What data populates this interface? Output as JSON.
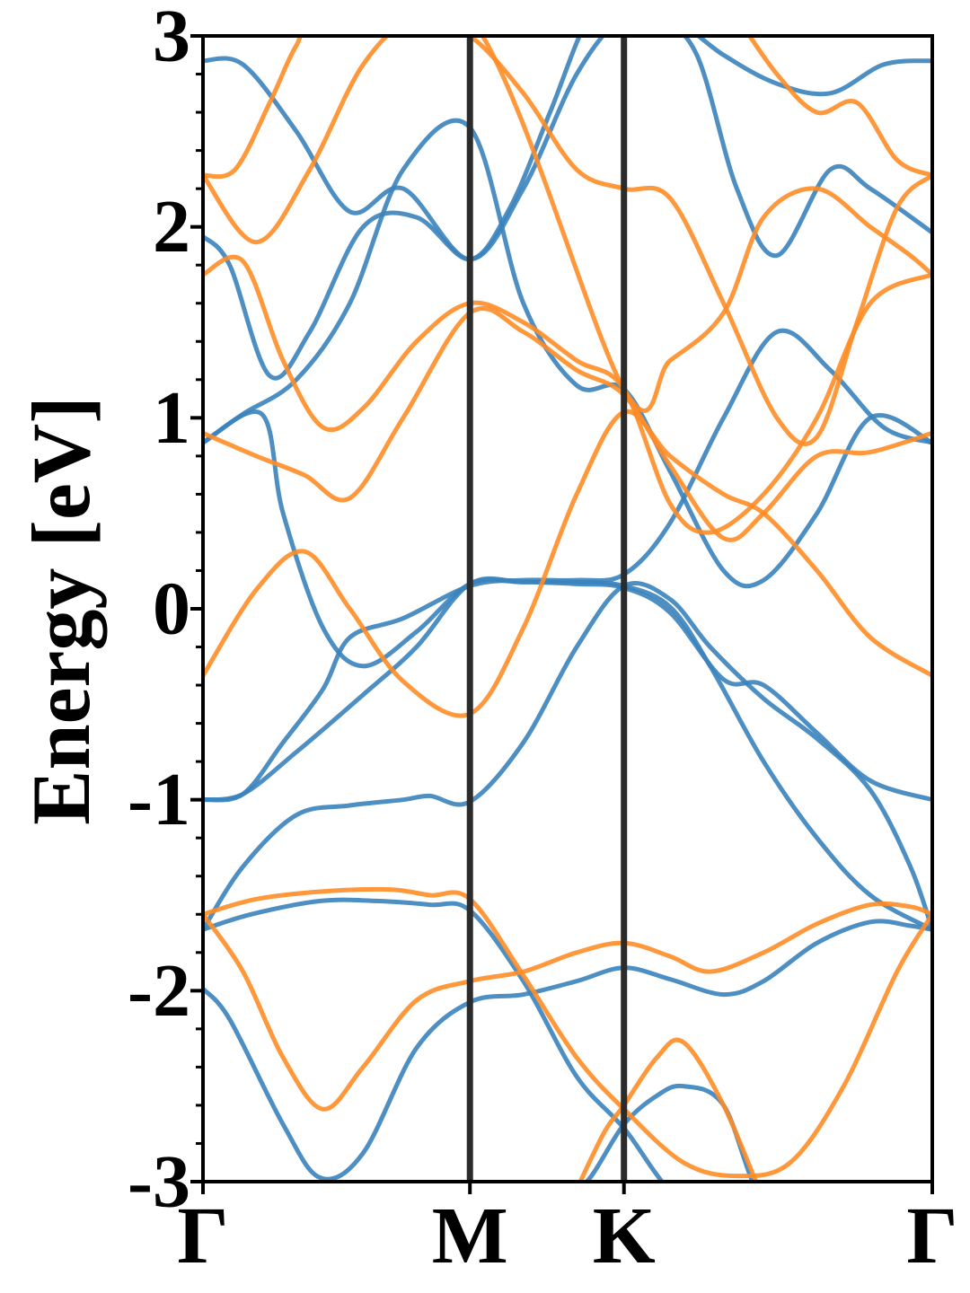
{
  "chart_data": {
    "type": "line",
    "title": "",
    "xlabel": "",
    "ylabel": "Energy [eV]",
    "ylim": [
      -3,
      3
    ],
    "yticks": [
      -3,
      -2,
      -1,
      0,
      1,
      2,
      3
    ],
    "ytick_labels": [
      "-3",
      "-2",
      "-1",
      "0",
      "1",
      "2",
      "3"
    ],
    "kpath": {
      "labels": [
        "Γ",
        "M",
        "K",
        "Γ"
      ],
      "positions": [
        0,
        1,
        1.577,
        2.732
      ]
    },
    "grid": false,
    "legend": "none",
    "colors": {
      "spin_up": "#3a83bd",
      "spin_down": "#ff8c26",
      "kpoint_line": "#2b2b2b"
    },
    "series": [
      {
        "color": "spin_up",
        "x": [
          0,
          0.18,
          0.44,
          0.65,
          0.85,
          1.0,
          1.2,
          1.4,
          1.577,
          1.8,
          2.1,
          2.4,
          2.6,
          2.732
        ],
        "y": [
          -1.68,
          -1.6,
          -1.53,
          -1.53,
          -1.55,
          -1.58,
          -1.95,
          -2.45,
          -2.72,
          -3.1,
          -3.1,
          -3.1,
          -3.1,
          -3.1
        ]
      },
      {
        "color": "spin_up",
        "x": [
          0,
          0.1,
          0.3,
          0.44,
          0.6,
          0.8,
          1.0,
          1.2,
          1.4,
          1.577,
          1.75,
          1.95,
          2.1,
          2.3,
          2.5,
          2.65,
          2.732
        ],
        "y": [
          -1.99,
          -2.15,
          -2.7,
          -2.98,
          -2.85,
          -2.3,
          -2.06,
          -2.02,
          -1.95,
          -1.88,
          -1.94,
          -2.02,
          -1.95,
          -1.75,
          -1.64,
          -1.66,
          -1.68
        ]
      },
      {
        "color": "spin_up",
        "x": [
          0,
          0.15,
          0.35,
          0.55,
          0.75,
          0.85,
          1.0,
          1.2,
          1.4,
          1.577,
          1.75,
          1.9,
          2.1,
          2.3,
          2.5,
          2.65,
          2.732
        ],
        "y": [
          -1.68,
          -1.35,
          -1.08,
          -1.03,
          -1.0,
          -0.98,
          -1.01,
          -0.7,
          -0.2,
          0.12,
          0.05,
          -0.2,
          -0.47,
          -0.68,
          -0.95,
          -1.35,
          -1.68
        ]
      },
      {
        "color": "spin_up",
        "x": [
          0,
          0.15,
          0.35,
          0.6,
          0.8,
          1.0,
          1.2,
          1.4,
          1.577,
          1.75,
          1.95,
          2.1,
          2.3,
          2.5,
          2.732
        ],
        "y": [
          -1.0,
          -0.97,
          -0.75,
          -0.45,
          -0.2,
          0.13,
          0.14,
          0.13,
          0.11,
          -0.02,
          -0.37,
          -0.4,
          -0.65,
          -0.9,
          -1.0
        ]
      },
      {
        "color": "spin_up",
        "x": [
          0,
          0.15,
          0.3,
          0.45,
          0.55,
          0.75,
          1.0,
          1.2,
          1.4,
          1.577,
          1.75,
          1.95,
          2.15,
          2.35,
          2.55,
          2.732
        ],
        "y": [
          -1.0,
          -0.97,
          -0.7,
          -0.42,
          -0.15,
          -0.05,
          0.12,
          0.15,
          0.15,
          0.18,
          0.45,
          1.0,
          1.45,
          1.25,
          0.95,
          0.87
        ]
      },
      {
        "color": "spin_up",
        "x": [
          0,
          0.22,
          0.3,
          0.45,
          0.6,
          0.8,
          1.0,
          1.2,
          1.4,
          1.577,
          1.75,
          1.9,
          2.1,
          2.3,
          2.5,
          2.732
        ],
        "y": [
          0.87,
          1.02,
          0.5,
          -0.1,
          -0.3,
          -0.12,
          0.13,
          0.14,
          0.14,
          0.12,
          0.01,
          -0.3,
          -0.8,
          -1.2,
          -1.5,
          -1.68
        ]
      },
      {
        "color": "spin_up",
        "x": [
          0,
          0.1,
          0.25,
          0.4,
          0.6,
          0.8,
          1.0,
          1.15,
          1.3,
          1.45,
          1.577,
          1.7,
          1.85,
          2.0,
          2.15,
          2.35,
          2.5,
          2.732
        ],
        "y": [
          1.95,
          1.8,
          1.22,
          1.45,
          2.0,
          2.05,
          1.83,
          2.1,
          2.6,
          3.1,
          3.1,
          3.1,
          2.9,
          2.2,
          1.85,
          2.3,
          2.2,
          1.97
        ]
      },
      {
        "color": "spin_up",
        "x": [
          0,
          0.15,
          0.35,
          0.55,
          0.75,
          1.0,
          1.2,
          1.4,
          1.577,
          1.75,
          1.95,
          2.1,
          2.3,
          2.5,
          2.732
        ],
        "y": [
          0.87,
          1.02,
          1.2,
          1.6,
          2.3,
          2.52,
          1.6,
          1.17,
          1.15,
          0.72,
          0.2,
          0.15,
          0.5,
          1.0,
          0.87
        ]
      },
      {
        "color": "spin_up",
        "x": [
          0,
          0.15,
          0.35,
          0.55,
          0.75,
          1.0,
          1.2,
          1.4,
          1.577,
          1.75,
          1.95,
          2.15,
          2.35,
          2.55,
          2.732
        ],
        "y": [
          2.87,
          2.85,
          2.5,
          2.08,
          2.2,
          1.83,
          2.2,
          2.8,
          3.1,
          3.1,
          2.9,
          2.75,
          2.7,
          2.85,
          2.87
        ]
      },
      {
        "color": "spin_up",
        "x": [
          1.35,
          1.45,
          1.577,
          1.7,
          1.8,
          1.95,
          2.1,
          2.3,
          2.5,
          2.732
        ],
        "y": [
          -3.1,
          -2.98,
          -2.7,
          -2.55,
          -2.5,
          -2.6,
          -3.1,
          -3.1,
          -3.1,
          -3.1
        ]
      },
      {
        "color": "spin_down",
        "x": [
          0,
          0.2,
          0.45,
          0.7,
          0.85,
          1.0,
          1.2,
          1.4,
          1.577,
          1.8,
          2.0,
          2.2,
          2.4,
          2.6,
          2.732
        ],
        "y": [
          -1.6,
          -1.52,
          -1.48,
          -1.47,
          -1.5,
          -1.52,
          -1.92,
          -2.35,
          -2.62,
          -2.9,
          -2.97,
          -2.9,
          -2.5,
          -1.9,
          -1.6
        ]
      },
      {
        "color": "spin_down",
        "x": [
          0,
          0.15,
          0.3,
          0.45,
          0.6,
          0.8,
          1.0,
          1.2,
          1.4,
          1.577,
          1.75,
          1.9,
          2.1,
          2.3,
          2.5,
          2.65,
          2.732
        ],
        "y": [
          -1.6,
          -1.9,
          -2.35,
          -2.62,
          -2.4,
          -2.05,
          -1.95,
          -1.9,
          -1.8,
          -1.75,
          -1.82,
          -1.9,
          -1.8,
          -1.65,
          -1.55,
          -1.56,
          -1.6
        ]
      },
      {
        "color": "spin_down",
        "x": [
          0,
          0.2,
          0.38,
          0.55,
          0.75,
          1.0,
          1.2,
          1.4,
          1.577,
          1.75,
          1.95,
          2.1,
          2.3,
          2.5,
          2.732
        ],
        "y": [
          -0.35,
          0.1,
          0.3,
          0.0,
          -0.38,
          -0.55,
          -0.1,
          0.6,
          1.03,
          0.8,
          0.6,
          0.5,
          0.2,
          -0.15,
          -0.35
        ]
      },
      {
        "color": "spin_down",
        "x": [
          0,
          0.2,
          0.38,
          0.55,
          0.75,
          1.0,
          1.2,
          1.4,
          1.577,
          1.75,
          1.95,
          2.1,
          2.3,
          2.5,
          2.732
        ],
        "y": [
          0.92,
          0.8,
          0.7,
          0.58,
          1.0,
          1.55,
          1.45,
          1.25,
          1.12,
          0.75,
          0.37,
          0.5,
          0.8,
          0.82,
          0.92
        ]
      },
      {
        "color": "spin_down",
        "x": [
          0,
          0.15,
          0.3,
          0.45,
          0.6,
          0.8,
          1.0,
          1.2,
          1.4,
          1.577,
          1.75,
          1.9,
          2.1,
          2.3,
          2.5,
          2.732
        ],
        "y": [
          1.75,
          1.82,
          1.3,
          0.95,
          1.05,
          1.4,
          1.6,
          1.5,
          1.3,
          1.15,
          0.55,
          0.4,
          0.6,
          1.0,
          1.6,
          1.75
        ]
      },
      {
        "color": "spin_down",
        "x": [
          0,
          0.2,
          0.4,
          0.6,
          0.8,
          1.0,
          1.2,
          1.4,
          1.577,
          1.75,
          1.95,
          2.15,
          2.3,
          2.45,
          2.6,
          2.732
        ],
        "y": [
          2.27,
          1.92,
          2.3,
          2.85,
          3.1,
          3.0,
          2.7,
          2.3,
          2.2,
          2.15,
          1.6,
          1.0,
          0.9,
          1.5,
          2.1,
          2.27
        ]
      },
      {
        "color": "spin_down",
        "x": [
          0,
          0.12,
          0.25,
          0.35,
          0.45,
          1.0,
          1.577,
          1.75,
          1.95,
          2.1,
          2.3,
          2.5,
          2.65,
          2.732
        ],
        "y": [
          2.27,
          2.3,
          2.65,
          2.95,
          3.1,
          3.1,
          1.15,
          1.3,
          1.55,
          2.05,
          2.2,
          2.0,
          1.85,
          1.75
        ]
      },
      {
        "color": "spin_down",
        "x": [
          2.0,
          2.15,
          2.3,
          2.45,
          2.6,
          2.732
        ],
        "y": [
          3.1,
          2.8,
          2.6,
          2.65,
          2.35,
          2.27
        ]
      },
      {
        "color": "spin_down",
        "x": [
          1.38,
          1.5,
          1.577,
          1.7,
          1.8,
          1.95,
          2.1
        ],
        "y": [
          -3.1,
          -2.75,
          -2.6,
          -2.35,
          -2.27,
          -2.6,
          -3.1
        ]
      }
    ]
  }
}
